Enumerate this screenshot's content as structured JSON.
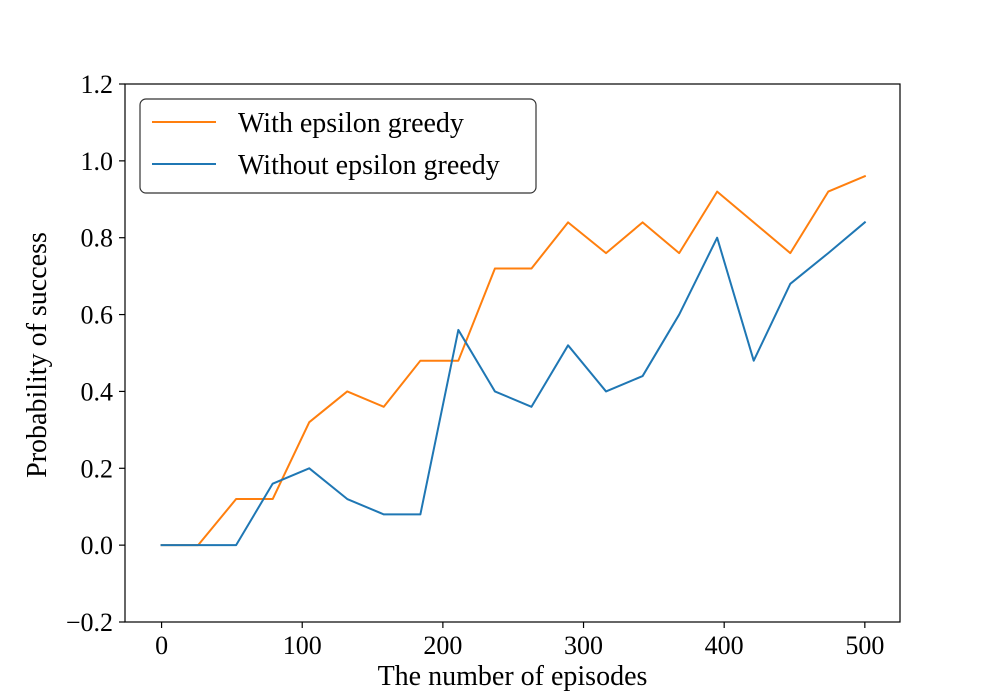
{
  "chart_data": {
    "type": "line",
    "xlabel": "The number of episodes",
    "ylabel": "Probability of success",
    "xlim": [
      -26,
      525
    ],
    "ylim": [
      -0.2,
      1.2
    ],
    "xticks": [
      0,
      100,
      200,
      300,
      400,
      500
    ],
    "yticks": [
      -0.2,
      0.0,
      0.2,
      0.4,
      0.6,
      0.8,
      1.0,
      1.2
    ],
    "xtick_labels": [
      "0",
      "100",
      "200",
      "300",
      "400",
      "500"
    ],
    "ytick_labels": [
      "−0.2",
      "0.0",
      "0.2",
      "0.4",
      "0.6",
      "0.8",
      "1.0",
      "1.2"
    ],
    "grid": false,
    "legend_position": "upper-left",
    "x": [
      0,
      26,
      53,
      79,
      105,
      132,
      158,
      184,
      211,
      237,
      263,
      289,
      316,
      342,
      368,
      395,
      421,
      447,
      474,
      500
    ],
    "series": [
      {
        "name": "With epsilon greedy",
        "color": "#ff7f0e",
        "values": [
          0.0,
          0.0,
          0.12,
          0.12,
          0.32,
          0.4,
          0.36,
          0.48,
          0.48,
          0.72,
          0.72,
          0.84,
          0.76,
          0.84,
          0.76,
          0.92,
          0.84,
          0.76,
          0.92,
          0.96
        ]
      },
      {
        "name": "Without epsilon greedy",
        "color": "#1f77b4",
        "values": [
          0.0,
          0.0,
          0.0,
          0.16,
          0.2,
          0.12,
          0.08,
          0.08,
          0.56,
          0.4,
          0.36,
          0.52,
          0.4,
          0.44,
          0.6,
          0.8,
          0.48,
          0.68,
          0.76,
          0.84
        ]
      }
    ]
  }
}
